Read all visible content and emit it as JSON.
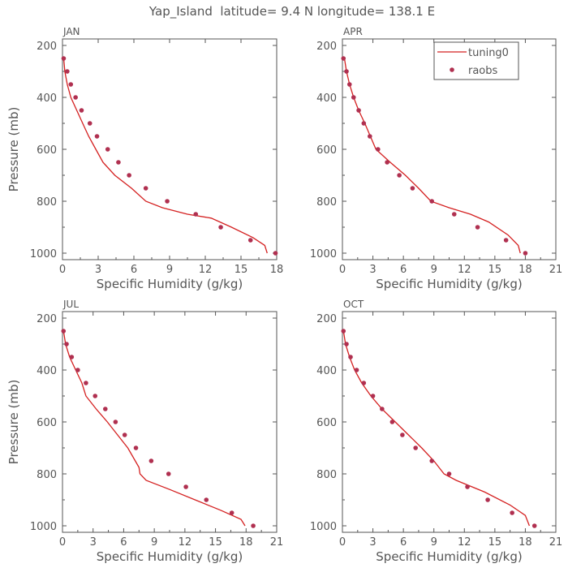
{
  "title": "Yap_Island  latitude= 9.4 N longitude= 138.1 E",
  "legend": {
    "model_label": "tuning0",
    "obs_label": "raobs"
  },
  "colors": {
    "model": "#d42020",
    "obs": "#b03050",
    "axis": "#555555"
  },
  "chart_data": [
    {
      "type": "line",
      "panel_label": "JAN",
      "xlabel": "Specific Humidity (g/kg)",
      "ylabel": "Pressure (mb)",
      "xlim": [
        0,
        18
      ],
      "ylim": [
        1000,
        200
      ],
      "xticks": [
        0,
        3,
        6,
        9,
        12,
        15,
        18
      ],
      "yticks": [
        200,
        400,
        600,
        800,
        1000
      ],
      "series": [
        {
          "name": "tuning0",
          "kind": "line",
          "x": [
            0.1,
            0.2,
            0.4,
            0.7,
            1.2,
            1.7,
            2.2,
            2.8,
            3.4,
            4.4,
            5.8,
            7.0,
            8.4,
            10.5,
            12.5,
            14.2,
            16.0,
            17.0,
            17.2
          ],
          "y": [
            250,
            300,
            350,
            400,
            450,
            500,
            550,
            600,
            650,
            700,
            750,
            800,
            825,
            850,
            865,
            900,
            940,
            970,
            1000
          ]
        },
        {
          "name": "raobs",
          "kind": "scatter",
          "x": [
            0.1,
            0.4,
            0.7,
            1.1,
            1.6,
            2.3,
            2.9,
            3.8,
            4.7,
            5.6,
            7.0,
            8.8,
            11.2,
            13.3,
            15.8,
            17.9
          ],
          "y": [
            250,
            300,
            350,
            400,
            450,
            500,
            550,
            600,
            650,
            700,
            750,
            800,
            850,
            900,
            950,
            1000
          ]
        }
      ]
    },
    {
      "type": "line",
      "panel_label": "APR",
      "xlabel": "Specific Humidity (g/kg)",
      "ylabel": "",
      "xlim": [
        0,
        21
      ],
      "ylim": [
        1000,
        200
      ],
      "xticks": [
        0,
        3,
        6,
        9,
        12,
        15,
        18,
        21
      ],
      "yticks": [
        200,
        400,
        600,
        800,
        1000
      ],
      "series": [
        {
          "name": "tuning0",
          "kind": "line",
          "x": [
            0.2,
            0.4,
            0.7,
            1.1,
            1.6,
            2.2,
            3.3,
            4.7,
            6.2,
            7.5,
            8.7,
            10.5,
            12.6,
            14.4,
            16.3,
            17.3,
            17.5
          ],
          "y": [
            250,
            300,
            350,
            400,
            450,
            500,
            600,
            650,
            700,
            750,
            800,
            825,
            850,
            880,
            930,
            970,
            1000
          ]
        },
        {
          "name": "raobs",
          "kind": "scatter",
          "x": [
            0.1,
            0.4,
            0.7,
            1.1,
            1.6,
            2.1,
            2.7,
            3.5,
            4.4,
            5.6,
            6.9,
            8.8,
            11.0,
            13.3,
            16.1,
            18.0
          ],
          "y": [
            250,
            300,
            350,
            400,
            450,
            500,
            550,
            600,
            650,
            700,
            750,
            800,
            850,
            900,
            950,
            1000
          ]
        }
      ]
    },
    {
      "type": "line",
      "panel_label": "JUL",
      "xlabel": "Specific Humidity (g/kg)",
      "ylabel": "Pressure (mb)",
      "xlim": [
        0,
        21
      ],
      "ylim": [
        1000,
        200
      ],
      "xticks": [
        0,
        3,
        6,
        9,
        12,
        15,
        18,
        21
      ],
      "yticks": [
        200,
        400,
        600,
        800,
        1000
      ],
      "series": [
        {
          "name": "tuning0",
          "kind": "line",
          "x": [
            0.1,
            0.3,
            0.7,
            1.3,
            1.9,
            2.3,
            3.3,
            4.4,
            5.4,
            6.4,
            7.5,
            7.6,
            8.2,
            10.5,
            13.0,
            15.5,
            17.5,
            17.9
          ],
          "y": [
            250,
            300,
            350,
            400,
            450,
            500,
            550,
            600,
            650,
            700,
            775,
            800,
            825,
            860,
            900,
            940,
            975,
            1000
          ]
        },
        {
          "name": "raobs",
          "kind": "scatter",
          "x": [
            0.1,
            0.4,
            0.9,
            1.5,
            2.3,
            3.2,
            4.2,
            5.2,
            6.1,
            7.2,
            8.7,
            10.4,
            12.1,
            14.1,
            16.6,
            18.7
          ],
          "y": [
            250,
            300,
            350,
            400,
            450,
            500,
            550,
            600,
            650,
            700,
            750,
            800,
            850,
            900,
            950,
            1000
          ]
        }
      ]
    },
    {
      "type": "line",
      "panel_label": "OCT",
      "xlabel": "Specific Humidity (g/kg)",
      "ylabel": "",
      "xlim": [
        0,
        21
      ],
      "ylim": [
        1000,
        200
      ],
      "xticks": [
        0,
        3,
        6,
        9,
        12,
        15,
        18,
        21
      ],
      "yticks": [
        200,
        400,
        600,
        800,
        1000
      ],
      "series": [
        {
          "name": "tuning0",
          "kind": "line",
          "x": [
            0.1,
            0.3,
            0.7,
            1.2,
            1.9,
            2.8,
            3.9,
            5.2,
            6.5,
            7.8,
            9.0,
            10.0,
            11.2,
            14.0,
            16.5,
            18.0,
            18.4
          ],
          "y": [
            250,
            300,
            350,
            400,
            450,
            500,
            550,
            600,
            650,
            700,
            750,
            800,
            825,
            870,
            920,
            960,
            1000
          ]
        },
        {
          "name": "raobs",
          "kind": "scatter",
          "x": [
            0.1,
            0.4,
            0.8,
            1.4,
            2.1,
            3.0,
            3.9,
            4.9,
            5.9,
            7.2,
            8.8,
            10.5,
            12.3,
            14.3,
            16.7,
            18.9
          ],
          "y": [
            250,
            300,
            350,
            400,
            450,
            500,
            550,
            600,
            650,
            700,
            750,
            800,
            850,
            900,
            950,
            1000
          ]
        }
      ]
    }
  ]
}
